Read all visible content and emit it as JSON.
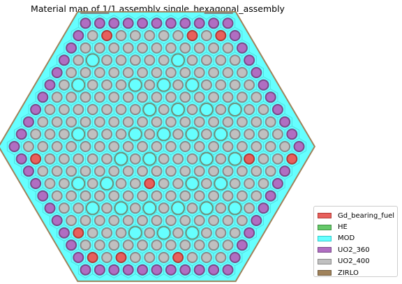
{
  "title": "Material map of 1/1 assembly single_hexagonal_assembly",
  "materials": [
    {
      "key": "gd",
      "label": "Gd_bearing_fuel",
      "color": "#e8605c",
      "edge": "#b03a36"
    },
    {
      "key": "he",
      "label": "HE",
      "color": "#66c96a",
      "edge": "#3e8f42"
    },
    {
      "key": "mod",
      "label": "MOD",
      "color": "#66ffff",
      "edge": "#33cccc"
    },
    {
      "key": "uo2_360",
      "label": "UO2_360",
      "color": "#b06ec2",
      "edge": "#7a4a88"
    },
    {
      "key": "uo2_400",
      "label": "UO2_400",
      "color": "#c0c0c0",
      "edge": "#8a8a8a"
    },
    {
      "key": "zirlo",
      "label": "ZIRLO",
      "color": "#a0825a",
      "edge": "#6e5a3c"
    }
  ],
  "lattice": {
    "rings": 11,
    "gd_pins": [
      [
        1,
        -9
      ],
      [
        7,
        -9
      ],
      [
        -9,
        7
      ],
      [
        5,
        -3
      ],
      [
        -2,
        3
      ],
      [
        6,
        1
      ],
      [
        9,
        -9
      ],
      [
        -3,
        9
      ],
      [
        -9,
        9
      ],
      [
        9,
        1
      ],
      [
        -7,
        9
      ],
      [
        -9,
        1
      ]
    ],
    "guide_tubes": [
      [
        -7,
        3
      ],
      [
        -5,
        -1
      ],
      [
        -3,
        -5
      ],
      [
        -1,
        -7
      ],
      [
        1,
        -5
      ],
      [
        3,
        -3
      ],
      [
        5,
        -1
      ],
      [
        7,
        -3
      ],
      [
        -7,
        5
      ],
      [
        -5,
        3
      ],
      [
        -3,
        1
      ],
      [
        -1,
        -1
      ],
      [
        1,
        -3
      ],
      [
        3,
        -5
      ],
      [
        5,
        -7
      ],
      [
        -5,
        7
      ],
      [
        -3,
        5
      ],
      [
        -1,
        1
      ],
      [
        1,
        -1
      ],
      [
        3,
        -1
      ],
      [
        5,
        -5
      ],
      [
        -3,
        7
      ],
      [
        -1,
        5
      ],
      [
        1,
        3
      ],
      [
        3,
        1
      ],
      [
        5,
        -3
      ],
      [
        1,
        5
      ],
      [
        3,
        3
      ],
      [
        5,
        1
      ],
      [
        -1,
        7
      ],
      [
        3,
        5
      ],
      [
        -5,
        5
      ]
    ]
  }
}
